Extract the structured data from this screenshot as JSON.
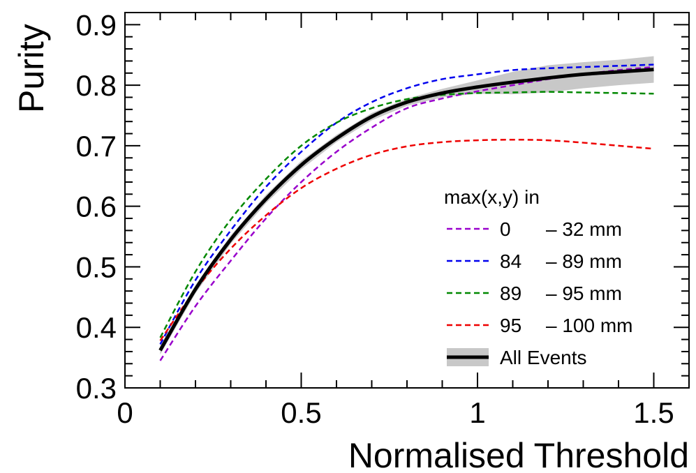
{
  "chart_data": {
    "type": "line",
    "title": "",
    "xlabel": "Normalised Threshold",
    "ylabel": "Purity",
    "xlim": [
      0,
      1.6
    ],
    "ylim": [
      0.3,
      0.92
    ],
    "grid": false,
    "x_ticks": [
      {
        "value": 0,
        "label": "0"
      },
      {
        "value": 0.5,
        "label": "0.5"
      },
      {
        "value": 1,
        "label": "1"
      },
      {
        "value": 1.5,
        "label": "1.5"
      }
    ],
    "y_ticks": [
      {
        "value": 0.3,
        "label": "0.3"
      },
      {
        "value": 0.4,
        "label": "0.4"
      },
      {
        "value": 0.5,
        "label": "0.5"
      },
      {
        "value": 0.6,
        "label": "0.6"
      },
      {
        "value": 0.7,
        "label": "0.7"
      },
      {
        "value": 0.8,
        "label": "0.8"
      },
      {
        "value": 0.9,
        "label": "0.9"
      }
    ],
    "x": [
      0.1,
      0.2,
      0.3,
      0.4,
      0.5,
      0.6,
      0.7,
      0.8,
      0.9,
      1.0,
      1.1,
      1.2,
      1.3,
      1.4,
      1.5
    ],
    "legend": {
      "title": "max(x,y) in",
      "position": "center-right"
    },
    "series": [
      {
        "name": "0 – 32 mm",
        "label_range": "0",
        "label_rest": "– 32 mm",
        "color": "#9900cc",
        "style": "dashed",
        "values": [
          0.345,
          0.435,
          0.51,
          0.58,
          0.64,
          0.69,
          0.73,
          0.762,
          0.778,
          0.79,
          0.8,
          0.81,
          0.818,
          0.825,
          0.83
        ]
      },
      {
        "name": "84 – 89 mm",
        "label_range": "84",
        "label_rest": "– 89 mm",
        "color": "#0000ee",
        "style": "dashed",
        "values": [
          0.372,
          0.478,
          0.56,
          0.632,
          0.69,
          0.738,
          0.772,
          0.795,
          0.81,
          0.818,
          0.825,
          0.828,
          0.83,
          0.832,
          0.834
        ]
      },
      {
        "name": "89 – 95 mm",
        "label_range": "89",
        "label_rest": "– 95 mm",
        "color": "#008800",
        "style": "dashed",
        "values": [
          0.383,
          0.492,
          0.578,
          0.645,
          0.7,
          0.738,
          0.762,
          0.777,
          0.784,
          0.787,
          0.788,
          0.789,
          0.788,
          0.787,
          0.786
        ]
      },
      {
        "name": "95 – 100 mm",
        "label_range": "95",
        "label_rest": "– 100 mm",
        "color": "#ee0000",
        "style": "dashed",
        "values": [
          0.378,
          0.462,
          0.53,
          0.585,
          0.63,
          0.662,
          0.685,
          0.699,
          0.706,
          0.709,
          0.71,
          0.709,
          0.705,
          0.7,
          0.695
        ]
      },
      {
        "name": "All Events",
        "label_range": "All Events",
        "label_rest": "",
        "color": "#000000",
        "style": "solid",
        "values": [
          0.362,
          0.463,
          0.545,
          0.612,
          0.668,
          0.712,
          0.748,
          0.772,
          0.787,
          0.797,
          0.805,
          0.812,
          0.818,
          0.822,
          0.826
        ],
        "band_color": "#c8c8c8",
        "band_lower": [
          0.355,
          0.456,
          0.538,
          0.605,
          0.661,
          0.706,
          0.742,
          0.766,
          0.78,
          0.786,
          0.785,
          0.788,
          0.795,
          0.8,
          0.804
        ],
        "band_upper": [
          0.37,
          0.47,
          0.552,
          0.619,
          0.675,
          0.718,
          0.754,
          0.778,
          0.794,
          0.808,
          0.822,
          0.833,
          0.838,
          0.842,
          0.848
        ]
      }
    ]
  }
}
